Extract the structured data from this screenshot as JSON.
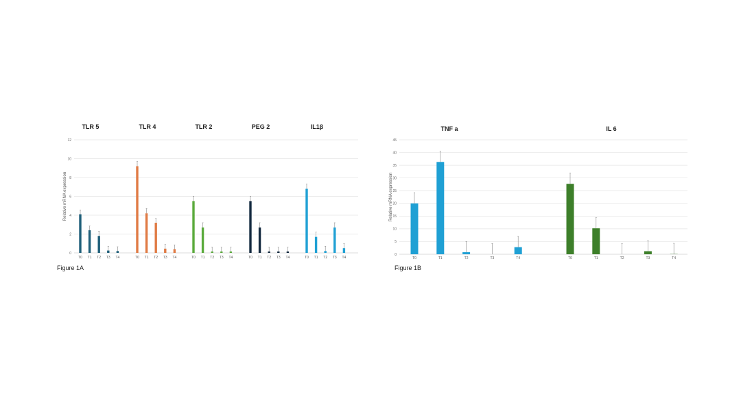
{
  "chart_data": [
    {
      "type": "bar",
      "caption": "Figure 1A",
      "ylabel": "Relative mRNA expression",
      "ylim": [
        0,
        12
      ],
      "yticks": [
        0,
        2,
        4,
        6,
        8,
        10,
        12
      ],
      "grid": true,
      "groups": [
        {
          "name": "TLR 5",
          "color": "#1f5f7a",
          "categories": [
            "T0",
            "T1",
            "T2",
            "T3",
            "T4"
          ],
          "values": [
            4.1,
            2.4,
            1.8,
            0.25,
            0.2
          ],
          "errors": [
            0.45,
            0.45,
            0.5,
            0.45,
            0.45
          ]
        },
        {
          "name": "TLR 4",
          "color": "#e07b45",
          "categories": [
            "T0",
            "T1",
            "T2",
            "T3",
            "T4"
          ],
          "values": [
            9.2,
            4.2,
            3.2,
            0.45,
            0.4
          ],
          "errors": [
            0.5,
            0.5,
            0.45,
            0.45,
            0.45
          ]
        },
        {
          "name": "TLR 2",
          "color": "#5aaa3c",
          "categories": [
            "T0",
            "T1",
            "T2",
            "T3",
            "T4"
          ],
          "values": [
            5.5,
            2.7,
            0.15,
            0.15,
            0.15
          ],
          "errors": [
            0.5,
            0.5,
            0.45,
            0.45,
            0.45
          ]
        },
        {
          "name": "PEG 2",
          "color": "#142a40",
          "categories": [
            "T0",
            "T1",
            "T2",
            "T3",
            "T4"
          ],
          "values": [
            5.5,
            2.7,
            0.15,
            0.15,
            0.15
          ],
          "errors": [
            0.5,
            0.5,
            0.45,
            0.45,
            0.45
          ]
        },
        {
          "name": "IL1β",
          "color": "#1fa0d4",
          "categories": [
            "T0",
            "T1",
            "T2",
            "T3",
            "T4"
          ],
          "values": [
            6.8,
            1.7,
            0.2,
            2.7,
            0.5
          ],
          "errors": [
            0.5,
            0.5,
            0.5,
            0.5,
            0.5
          ]
        }
      ]
    },
    {
      "type": "bar",
      "caption": "Figure 1B",
      "ylabel": "Relative mRNA expression",
      "ylim": [
        0,
        45
      ],
      "yticks": [
        0,
        5,
        10,
        15,
        20,
        25,
        30,
        35,
        40,
        45
      ],
      "grid": true,
      "groups": [
        {
          "name": "TNF a",
          "color": "#1fa0d4",
          "categories": [
            "T0",
            "T1",
            "T2",
            "T3",
            "T4"
          ],
          "values": [
            20,
            36.3,
            0.8,
            0,
            2.8
          ],
          "errors": [
            4.2,
            4.2,
            4.2,
            4.2,
            4.2
          ]
        },
        {
          "name": "IL 6",
          "color": "#3d7f2a",
          "categories": [
            "T0",
            "T1",
            "T2",
            "T3",
            "T4"
          ],
          "values": [
            27.7,
            10.2,
            0,
            1.2,
            0.1
          ],
          "errors": [
            4.2,
            4.2,
            4.2,
            4.2,
            4.2
          ]
        }
      ]
    }
  ]
}
